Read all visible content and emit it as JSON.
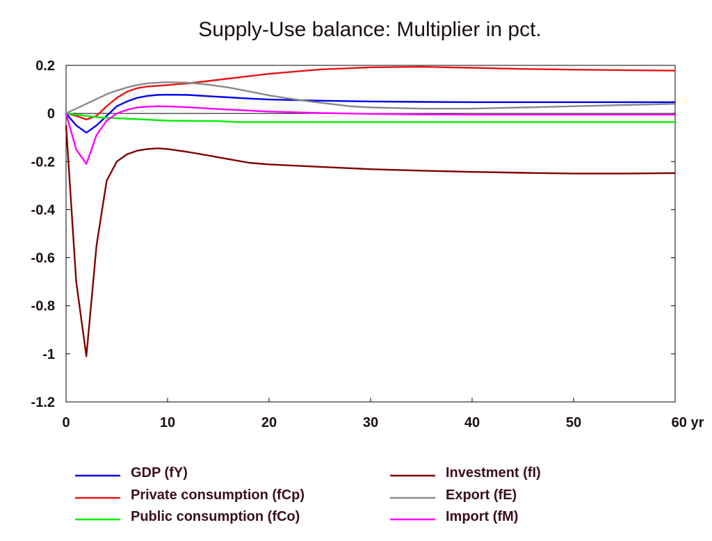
{
  "chart_data": {
    "type": "line",
    "title": "Supply-Use balance: Multiplier in pct.",
    "xlabel": "",
    "ylabel": "",
    "x_unit_label": "yr",
    "xlim": [
      0,
      60
    ],
    "ylim": [
      -1.2,
      0.2
    ],
    "x_ticks": [
      0,
      10,
      20,
      30,
      40,
      50,
      60
    ],
    "x_tick_labels": [
      "0",
      "10",
      "20",
      "30",
      "40",
      "50",
      "60 yr"
    ],
    "y_ticks": [
      0.2,
      0,
      -0.2,
      -0.4,
      -0.6,
      -0.8,
      -1,
      -1.2
    ],
    "y_tick_labels": [
      "0.2",
      "0",
      "-0.2",
      "-0.4",
      "-0.6",
      "-0.8",
      "-1",
      "-1.2"
    ],
    "grid": false,
    "zero_line": true,
    "legend_placement": "bottom",
    "series": [
      {
        "name": "GDP (fY)",
        "color": "#0000ee",
        "points": [
          [
            0,
            0
          ],
          [
            1,
            -0.05
          ],
          [
            2,
            -0.08
          ],
          [
            3,
            -0.05
          ],
          [
            4,
            -0.01
          ],
          [
            5,
            0.03
          ],
          [
            6,
            0.05
          ],
          [
            7,
            0.065
          ],
          [
            8,
            0.073
          ],
          [
            9,
            0.077
          ],
          [
            10,
            0.078
          ],
          [
            12,
            0.077
          ],
          [
            14,
            0.072
          ],
          [
            16,
            0.067
          ],
          [
            18,
            0.062
          ],
          [
            20,
            0.058
          ],
          [
            25,
            0.053
          ],
          [
            30,
            0.05
          ],
          [
            35,
            0.048
          ],
          [
            40,
            0.047
          ],
          [
            45,
            0.047
          ],
          [
            50,
            0.047
          ],
          [
            55,
            0.047
          ],
          [
            60,
            0.047
          ]
        ]
      },
      {
        "name": "Private consumption (fCp)",
        "color": "#ee1111",
        "points": [
          [
            0,
            0
          ],
          [
            1,
            -0.01
          ],
          [
            2,
            -0.025
          ],
          [
            3,
            -0.01
          ],
          [
            4,
            0.03
          ],
          [
            5,
            0.065
          ],
          [
            6,
            0.09
          ],
          [
            7,
            0.105
          ],
          [
            8,
            0.112
          ],
          [
            9,
            0.115
          ],
          [
            10,
            0.118
          ],
          [
            12,
            0.125
          ],
          [
            14,
            0.135
          ],
          [
            16,
            0.145
          ],
          [
            18,
            0.155
          ],
          [
            20,
            0.165
          ],
          [
            25,
            0.183
          ],
          [
            30,
            0.192
          ],
          [
            35,
            0.194
          ],
          [
            40,
            0.19
          ],
          [
            45,
            0.185
          ],
          [
            50,
            0.182
          ],
          [
            55,
            0.18
          ],
          [
            60,
            0.178
          ]
        ]
      },
      {
        "name": "Public consumption (fCo)",
        "color": "#00ee00",
        "points": [
          [
            0,
            0
          ],
          [
            1,
            -0.005
          ],
          [
            2,
            -0.01
          ],
          [
            3,
            -0.015
          ],
          [
            4,
            -0.018
          ],
          [
            5,
            -0.02
          ],
          [
            8,
            -0.026
          ],
          [
            10,
            -0.03
          ],
          [
            15,
            -0.032
          ],
          [
            17,
            -0.036
          ],
          [
            20,
            -0.036
          ],
          [
            30,
            -0.036
          ],
          [
            40,
            -0.036
          ],
          [
            50,
            -0.036
          ],
          [
            60,
            -0.036
          ]
        ]
      },
      {
        "name": "Investment (fI)",
        "color": "#800000",
        "points": [
          [
            0,
            -0.05
          ],
          [
            1,
            -0.7
          ],
          [
            2,
            -1.01
          ],
          [
            3,
            -0.55
          ],
          [
            4,
            -0.28
          ],
          [
            5,
            -0.2
          ],
          [
            6,
            -0.17
          ],
          [
            7,
            -0.155
          ],
          [
            8,
            -0.148
          ],
          [
            9,
            -0.145
          ],
          [
            10,
            -0.148
          ],
          [
            12,
            -0.16
          ],
          [
            14,
            -0.175
          ],
          [
            16,
            -0.19
          ],
          [
            18,
            -0.205
          ],
          [
            20,
            -0.212
          ],
          [
            25,
            -0.222
          ],
          [
            30,
            -0.232
          ],
          [
            35,
            -0.238
          ],
          [
            40,
            -0.243
          ],
          [
            45,
            -0.247
          ],
          [
            50,
            -0.25
          ],
          [
            55,
            -0.25
          ],
          [
            60,
            -0.248
          ]
        ]
      },
      {
        "name": "Export (fE)",
        "color": "#888888",
        "points": [
          [
            0,
            0
          ],
          [
            1,
            0.02
          ],
          [
            2,
            0.04
          ],
          [
            3,
            0.06
          ],
          [
            4,
            0.08
          ],
          [
            5,
            0.095
          ],
          [
            6,
            0.108
          ],
          [
            7,
            0.118
          ],
          [
            8,
            0.125
          ],
          [
            9,
            0.128
          ],
          [
            10,
            0.13
          ],
          [
            12,
            0.128
          ],
          [
            14,
            0.12
          ],
          [
            16,
            0.108
          ],
          [
            18,
            0.092
          ],
          [
            20,
            0.075
          ],
          [
            22,
            0.062
          ],
          [
            24,
            0.05
          ],
          [
            26,
            0.04
          ],
          [
            28,
            0.03
          ],
          [
            30,
            0.025
          ],
          [
            35,
            0.02
          ],
          [
            40,
            0.02
          ],
          [
            45,
            0.025
          ],
          [
            50,
            0.03
          ],
          [
            55,
            0.035
          ],
          [
            60,
            0.04
          ]
        ]
      },
      {
        "name": "Import (fM)",
        "color": "#ff00ff",
        "points": [
          [
            0,
            0
          ],
          [
            1,
            -0.15
          ],
          [
            2,
            -0.21
          ],
          [
            3,
            -0.09
          ],
          [
            4,
            -0.03
          ],
          [
            5,
            0.0
          ],
          [
            6,
            0.015
          ],
          [
            7,
            0.025
          ],
          [
            8,
            0.028
          ],
          [
            9,
            0.03
          ],
          [
            10,
            0.029
          ],
          [
            12,
            0.026
          ],
          [
            14,
            0.021
          ],
          [
            16,
            0.016
          ],
          [
            18,
            0.012
          ],
          [
            20,
            0.008
          ],
          [
            25,
            0.002
          ],
          [
            30,
            -0.002
          ],
          [
            35,
            -0.004
          ],
          [
            40,
            -0.005
          ],
          [
            45,
            -0.005
          ],
          [
            50,
            -0.005
          ],
          [
            55,
            -0.005
          ],
          [
            60,
            -0.005
          ]
        ]
      }
    ]
  }
}
